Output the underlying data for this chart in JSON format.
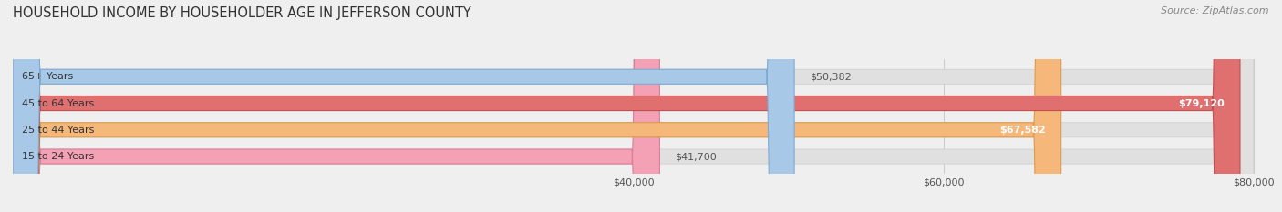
{
  "title": "HOUSEHOLD INCOME BY HOUSEHOLDER AGE IN JEFFERSON COUNTY",
  "source": "Source: ZipAtlas.com",
  "categories": [
    "15 to 24 Years",
    "25 to 44 Years",
    "45 to 64 Years",
    "65+ Years"
  ],
  "values": [
    41700,
    67582,
    79120,
    50382
  ],
  "bar_colors": [
    "#f4a0b5",
    "#f5b87a",
    "#e07070",
    "#a8c8e8"
  ],
  "bar_edge_colors": [
    "#d8809a",
    "#d99a50",
    "#c05050",
    "#80aad0"
  ],
  "x_min": 0,
  "x_max": 80000,
  "x_ticks": [
    40000,
    60000,
    80000
  ],
  "x_tick_labels": [
    "$40,000",
    "$60,000",
    "$80,000"
  ],
  "value_labels": [
    "$41,700",
    "$67,582",
    "$79,120",
    "$50,382"
  ],
  "bg_color": "#efefef",
  "bar_bg_color": "#e0e0e0",
  "title_fontsize": 10.5,
  "source_fontsize": 8,
  "bar_height": 0.55,
  "figsize": [
    14.06,
    2.33
  ],
  "dpi": 100
}
